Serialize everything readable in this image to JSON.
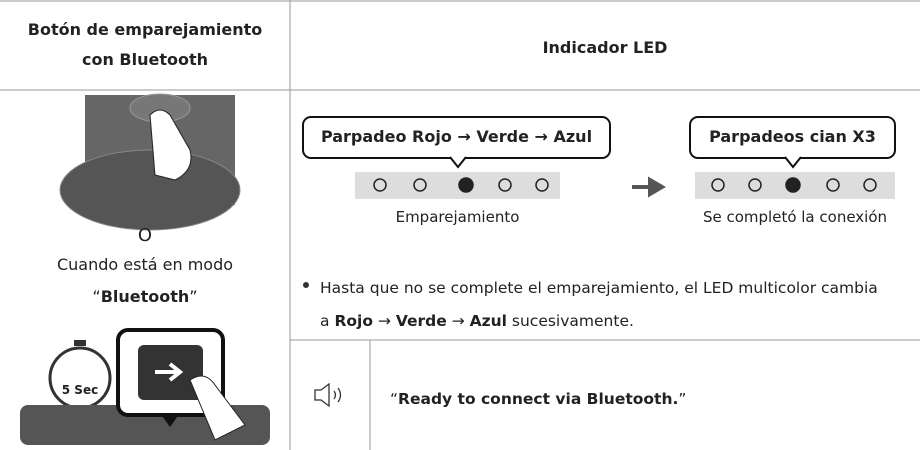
{
  "table": {
    "headers": [
      "Botón de emparejamiento con Bluetooth",
      "Indicador LED"
    ],
    "left": {
      "timer": "5 Sec",
      "or": "O",
      "mode_text": "Cuando está en modo",
      "mode_name": [
        {
          "text": "“",
          "bold": false
        },
        {
          "text": "Bluetooth",
          "bold": true
        },
        {
          "text": "”",
          "bold": false
        }
      ]
    },
    "led": [
      {
        "callout": "Parpadeo Rojo → Verde → Azul",
        "caption": "Emparejamiento"
      },
      {
        "callout": "Parpadeos cian X3",
        "caption": "Se completó la conexión"
      }
    ],
    "note": [
      {
        "text": "Hasta que no se complete el emparejamiento, el LED multicolor cambia a ",
        "bold": false
      },
      {
        "text": "Rojo",
        "bold": true
      },
      {
        "text": " → ",
        "bold": false
      },
      {
        "text": "Verde",
        "bold": true
      },
      {
        "text": " → ",
        "bold": false
      },
      {
        "text": "Azul",
        "bold": true
      },
      {
        "text": " sucesivamente.",
        "bold": false
      }
    ],
    "voice": [
      {
        "text": "“",
        "bold": false
      },
      {
        "text": "Ready to connect via Bluetooth.",
        "bold": true
      },
      {
        "text": "”",
        "bold": false
      }
    ]
  }
}
